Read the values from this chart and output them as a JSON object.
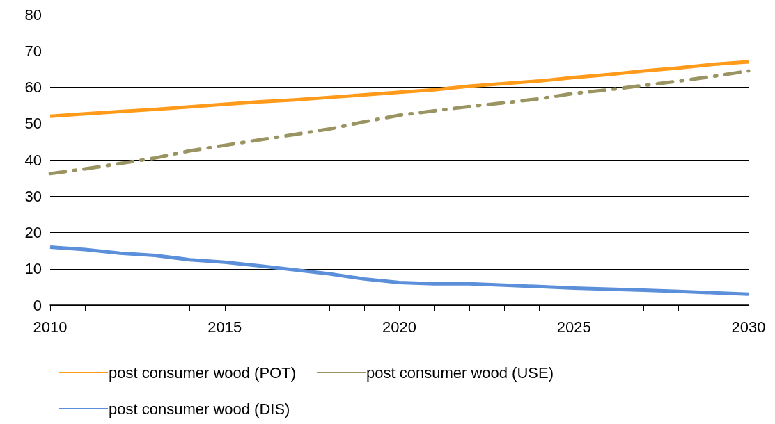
{
  "chart_data": {
    "type": "line",
    "x": [
      2010,
      2011,
      2012,
      2013,
      2014,
      2015,
      2016,
      2017,
      2018,
      2019,
      2020,
      2021,
      2022,
      2023,
      2024,
      2025,
      2026,
      2027,
      2028,
      2029,
      2030
    ],
    "series": [
      {
        "name": "post consumer wood (POT)",
        "color": "#ff9a1a",
        "values": [
          52,
          52.7,
          53.3,
          53.9,
          54.6,
          55.3,
          56,
          56.5,
          57.2,
          57.9,
          58.6,
          59.3,
          60.3,
          61,
          61.7,
          62.7,
          63.5,
          64.5,
          65.3,
          66.3,
          67
        ]
      },
      {
        "name": "post consumer wood (USE)",
        "color": "#9a9462",
        "line_style": "dashed",
        "values": [
          36.2,
          37.5,
          39,
          40.5,
          42.5,
          44,
          45.5,
          47,
          48.5,
          50.5,
          52.3,
          53.5,
          54.7,
          55.7,
          56.8,
          58.3,
          59.3,
          60.5,
          61.7,
          63,
          64.5
        ]
      },
      {
        "name": "post consumer wood (DIS)",
        "color": "#5b8fd9",
        "values": [
          16,
          15.3,
          14.3,
          13.7,
          12.5,
          11.8,
          10.8,
          9.7,
          8.6,
          7.2,
          6.2,
          5.9,
          5.9,
          5.5,
          5.1,
          4.7,
          4.4,
          4.1,
          3.8,
          3.4,
          3
        ]
      }
    ],
    "xlim": [
      2010,
      2030
    ],
    "xticks": [
      2010,
      {
        "value": 2011,
        "label": null
      },
      {
        "value": 2012,
        "label": null
      },
      {
        "value": 2013,
        "label": null
      },
      {
        "value": 2014,
        "label": null
      },
      2015,
      {
        "value": 2016,
        "label": null
      },
      {
        "value": 2017,
        "label": null
      },
      {
        "value": 2018,
        "label": null
      },
      {
        "value": 2019,
        "label": null
      },
      2020,
      {
        "value": 2021,
        "label": null
      },
      {
        "value": 2022,
        "label": null
      },
      {
        "value": 2023,
        "label": null
      },
      {
        "value": 2024,
        "label": null
      },
      2025,
      {
        "value": 2026,
        "label": null
      },
      {
        "value": 2027,
        "label": null
      },
      {
        "value": 2028,
        "label": null
      },
      {
        "value": 2029,
        "label": null
      },
      2030
    ],
    "ylim": [
      0,
      80
    ],
    "yticks": [
      0,
      10,
      20,
      30,
      40,
      50,
      60,
      70,
      80
    ],
    "grid": "y",
    "legend": "bottom",
    "marker": "none",
    "line_style": "solid"
  }
}
